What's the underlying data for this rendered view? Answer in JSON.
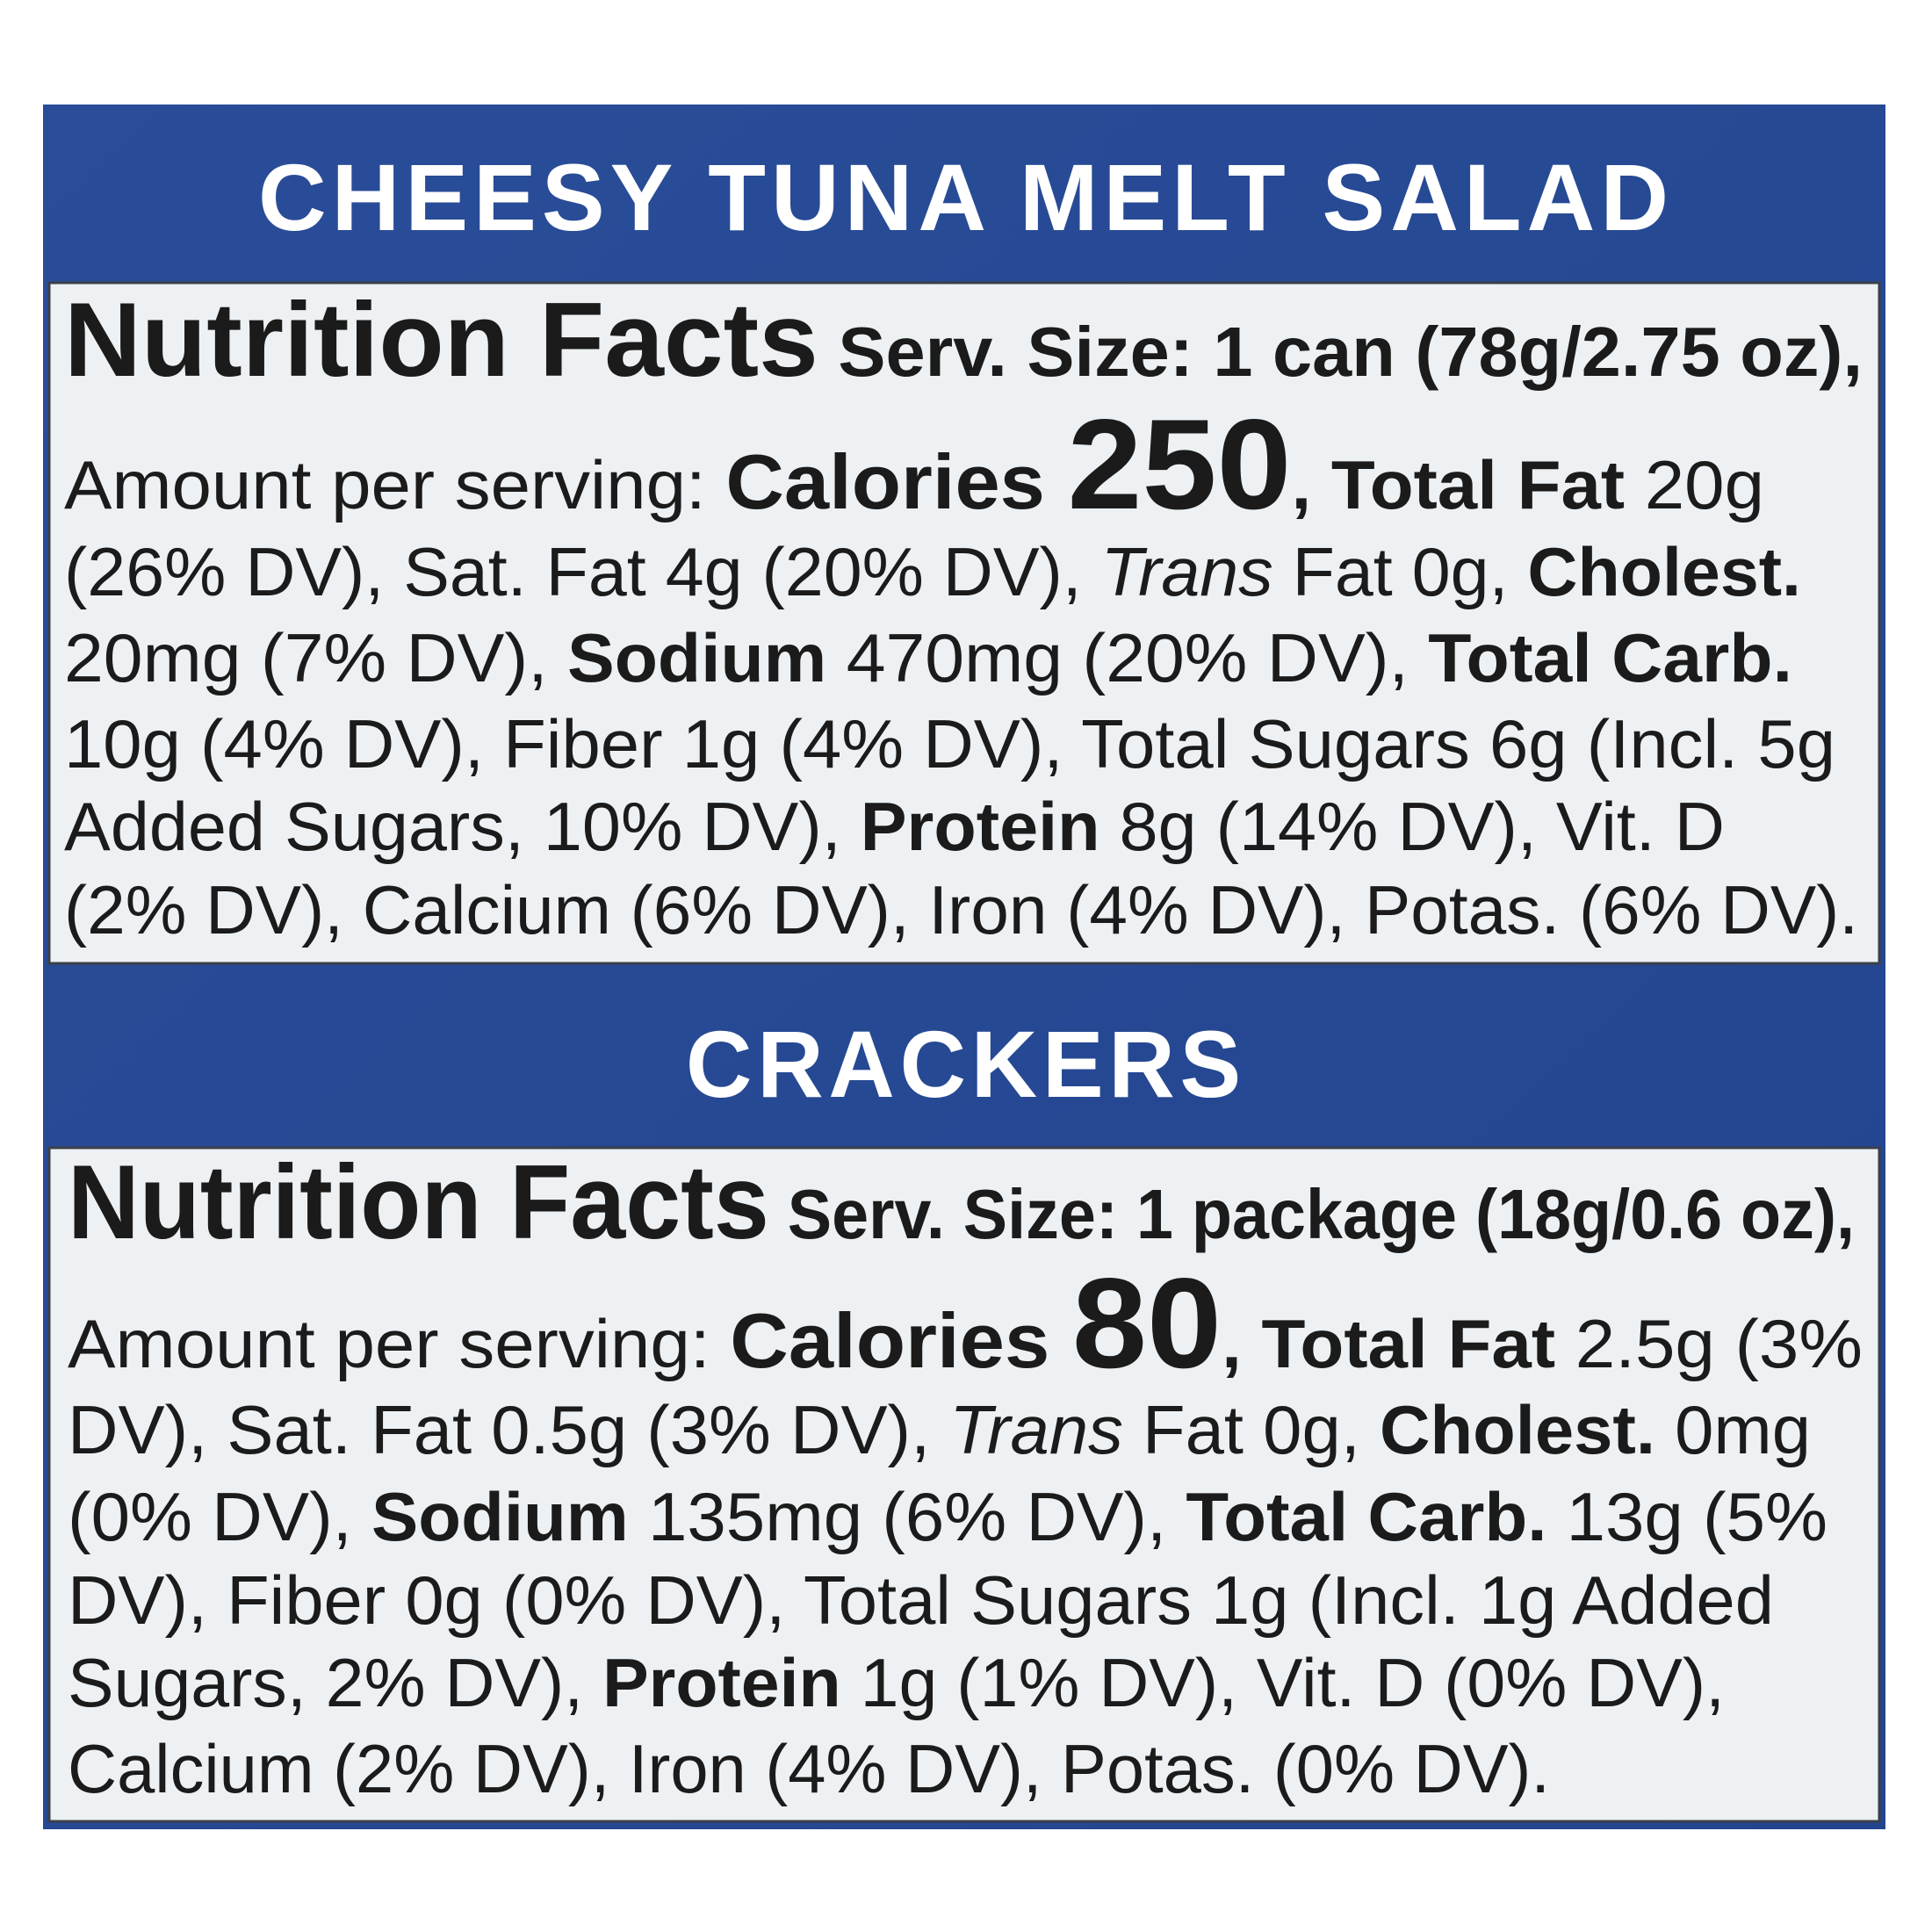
{
  "sections": [
    {
      "title": "CHEESY TUNA MELT SALAD",
      "lines": [
        [
          {
            "h": "Nutrition Facts"
          },
          {
            "s": " Serv. Size: 1 can (78g/2.75 oz),"
          }
        ],
        [
          "Amount per serving: ",
          {
            "c": "Calories "
          },
          {
            "n": 250
          },
          {
            "b": ", Total Fat"
          },
          " 20g"
        ],
        [
          "(26% DV), Sat. Fat 4g (20% DV), ",
          {
            "i": "Trans"
          },
          " Fat 0g, ",
          {
            "b": "Cholest."
          }
        ],
        [
          "20mg (7% DV), ",
          {
            "b": "Sodium"
          },
          " 470mg (20% DV), ",
          {
            "b": "Total Carb."
          }
        ],
        [
          "10g (4% DV), Fiber 1g (4% DV), Total Sugars 6g (Incl. 5g"
        ],
        [
          "Added Sugars, 10% DV), ",
          {
            "b": "Protein"
          },
          " 8g (14% DV), Vit. D"
        ],
        [
          "(2% DV), Calcium (6% DV), Iron (4% DV), Potas. (6% DV)."
        ]
      ]
    },
    {
      "title": "CRACKERS",
      "lines": [
        [
          {
            "h": "Nutrition Facts"
          },
          {
            "s": " Serv. Size: 1 package (18g/0.6 oz),"
          }
        ],
        [
          "Amount per serving: ",
          {
            "c": "Calories "
          },
          {
            "n": 80
          },
          {
            "b": ", Total Fat"
          },
          " 2.5g (3%"
        ],
        [
          "DV), Sat. Fat 0.5g (3% DV), ",
          {
            "i": "Trans"
          },
          " Fat 0g, ",
          {
            "b": "Cholest."
          },
          " 0mg"
        ],
        [
          "(0% DV), ",
          {
            "b": "Sodium"
          },
          " 135mg (6% DV), ",
          {
            "b": "Total Carb."
          },
          " 13g (5%"
        ],
        [
          "DV), Fiber 0g (0% DV), Total Sugars 1g (Incl. 1g Added"
        ],
        [
          "Sugars, 2% DV), ",
          {
            "b": "Protein"
          },
          " 1g (1% DV), Vit. D (0% DV),"
        ],
        [
          "Calcium (2% DV), Iron (4% DV), Potas. (0% DV)."
        ]
      ]
    }
  ]
}
